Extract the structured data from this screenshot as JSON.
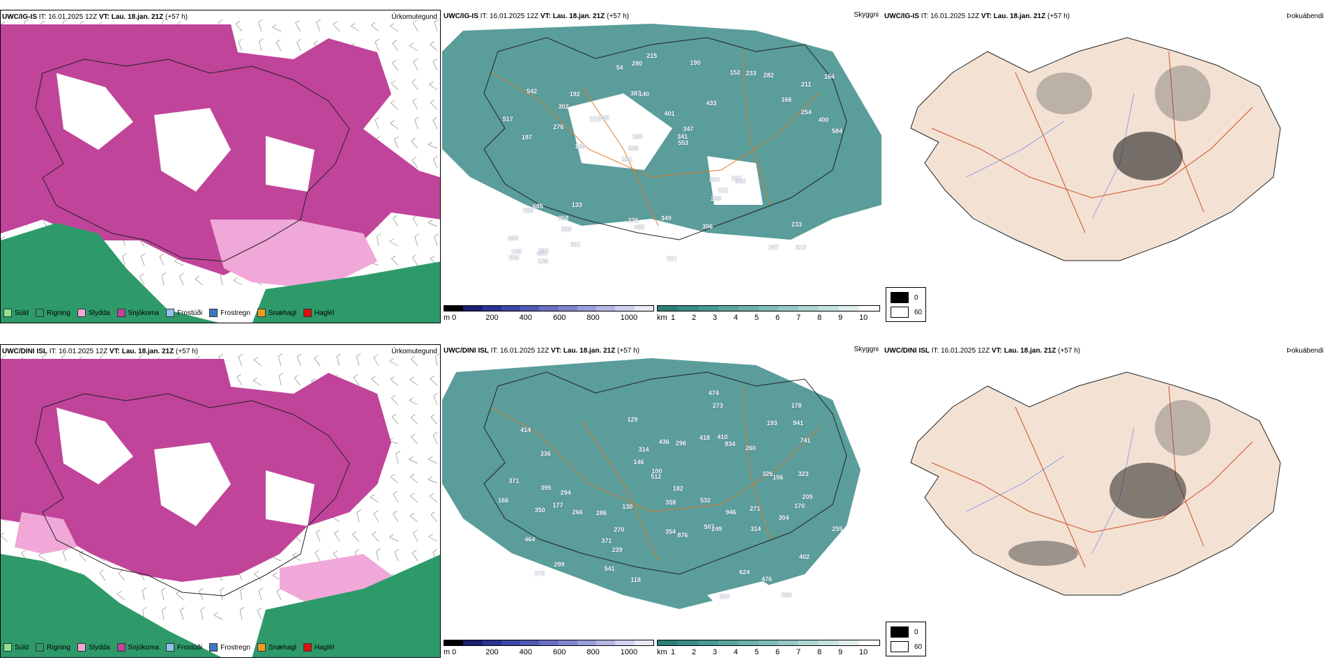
{
  "rows": [
    {
      "model": "UWC/IG-IS",
      "it_label": "IT:",
      "it_value": "16.01.2025 12Z",
      "vt_label": "VT:",
      "vt_value": "Lau. 18.jan. 21Z",
      "lead": "(+57 h)",
      "panel1_label": "Úrkomutegund",
      "panel2_label": "Skyggni",
      "panel3_label": "Þokuábendi",
      "peaks": [
        "313",
        "197",
        "211",
        "332",
        "433",
        "263",
        "387",
        "401",
        "685",
        "259",
        "399",
        "289",
        "140",
        "347",
        "630",
        "542",
        "280",
        "584",
        "834",
        "254",
        "339",
        "236",
        "180",
        "192",
        "152",
        "133",
        "247",
        "233",
        "287",
        "221",
        "221",
        "276",
        "230",
        "531",
        "400",
        "341",
        "153",
        "488",
        "553",
        "283",
        "166",
        "164",
        "112",
        "306",
        "258",
        "136",
        "205",
        "349",
        "282",
        "215",
        "189",
        "517",
        "302",
        "233",
        "484",
        "190",
        "54"
      ]
    },
    {
      "model": "UWC/DINI ISL",
      "it_label": "IT:",
      "it_value": "16.01.2025 12Z",
      "vt_label": "VT:",
      "vt_value": "Lau. 18.jan. 21Z",
      "lead": "(+57 h)",
      "panel1_label": "Úrkomutegund",
      "panel2_label": "Skyggni",
      "panel3_label": "Þokuábendi",
      "peaks": [
        "368",
        "177",
        "507",
        "414",
        "402",
        "336",
        "299",
        "286",
        "260",
        "436",
        "834",
        "476",
        "239",
        "129",
        "532",
        "464",
        "271",
        "182",
        "371",
        "276",
        "178",
        "296",
        "326",
        "255",
        "205",
        "395",
        "266",
        "358",
        "512",
        "941",
        "249",
        "350",
        "371",
        "410",
        "314",
        "304",
        "170",
        "624",
        "193",
        "324",
        "270",
        "876",
        "541",
        "474",
        "130",
        "294",
        "741",
        "273",
        "418",
        "354",
        "946",
        "323",
        "314",
        "156",
        "146",
        "166",
        "118",
        "100"
      ]
    }
  ],
  "precip_legend": [
    {
      "label": "Súld",
      "color": "#8fe38f"
    },
    {
      "label": "Rigning",
      "color": "#2e9a6a"
    },
    {
      "label": "Slydda",
      "color": "#f0a8d8"
    },
    {
      "label": "Snjókoma",
      "color": "#c0449a"
    },
    {
      "label": "Frostúði",
      "color": "#8ec3ea"
    },
    {
      "label": "Frostregn",
      "color": "#3a78c0"
    },
    {
      "label": "Snæhagl",
      "color": "#f09a20"
    },
    {
      "label": "Haglél",
      "color": "#e01010"
    }
  ],
  "elev_scale": {
    "unit": "m",
    "ticks": [
      "0",
      "200",
      "400",
      "600",
      "800",
      "1000"
    ],
    "colors": [
      "#000000",
      "#1b1f6e",
      "#2b3392",
      "#3a46a8",
      "#5159b6",
      "#6a6fc4",
      "#8185cf",
      "#9b9fda",
      "#b5b8e5",
      "#d0d2ef",
      "#e8e9f7"
    ]
  },
  "vis_scale": {
    "unit": "km",
    "ticks": [
      "1",
      "2",
      "3",
      "4",
      "5",
      "6",
      "7",
      "8",
      "9",
      "10"
    ],
    "colors": [
      "#2d7f7a",
      "#3b8b86",
      "#4a9893",
      "#5aa5a0",
      "#6cb1ac",
      "#80bdb8",
      "#96c9c5",
      "#aed6d2",
      "#c6e2df",
      "#e0efed",
      "#ffffff"
    ]
  },
  "cloud_legend": {
    "v1": "0",
    "v2": "60"
  },
  "colors": {
    "snow": "#c0449a",
    "rain": "#2e9a6a",
    "sleet": "#f0a8d8",
    "vis": "#3d8c88",
    "land": "#f3e2d3",
    "road": "#e07b2a",
    "coast": "#222222"
  }
}
